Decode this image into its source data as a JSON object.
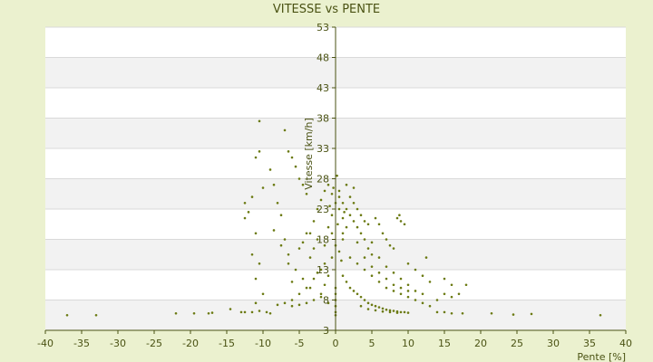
{
  "chart_data": {
    "type": "scatter",
    "title": "VITESSE vs PENTE",
    "xlabel": "Pente [%]",
    "ylabel": "Vitesse [km/h]",
    "xlim": [
      -40,
      40
    ],
    "ylim": [
      3,
      53
    ],
    "x_ticks": [
      -40,
      -35,
      -30,
      -25,
      -20,
      -15,
      -10,
      -5,
      0,
      5,
      10,
      15,
      20,
      25,
      30,
      35,
      40
    ],
    "y_ticks": [
      3,
      8,
      13,
      18,
      23,
      28,
      33,
      38,
      43,
      48,
      53
    ],
    "grid": "horizontal bands",
    "legend": "none",
    "colors": {
      "background": "#ebf1cf",
      "plot_band_light": "#ffffff",
      "plot_band_dark": "#f2f2f2",
      "gridline": "#d9d9d9",
      "marker": "#6b7a12",
      "axis": "#4a5213"
    },
    "series": [
      {
        "points": [
          [
            -37,
            5.5
          ],
          [
            -33,
            5.5
          ],
          [
            -22,
            5.8
          ],
          [
            -19.5,
            5.8
          ],
          [
            -17.5,
            5.8
          ],
          [
            -17,
            5.9
          ],
          [
            -14.5,
            6.5
          ],
          [
            -13,
            6
          ],
          [
            -12.5,
            6
          ],
          [
            -11.5,
            6
          ],
          [
            -11,
            7.5
          ],
          [
            -10.5,
            37.5
          ],
          [
            -10.5,
            32.5
          ],
          [
            -11,
            31.5
          ],
          [
            -10,
            26.5
          ],
          [
            -11.5,
            25
          ],
          [
            -12.5,
            24
          ],
          [
            -12,
            22.5
          ],
          [
            -12.5,
            21.5
          ],
          [
            -11,
            19
          ],
          [
            -11.5,
            15.5
          ],
          [
            -10.5,
            14
          ],
          [
            -11,
            11.5
          ],
          [
            -10,
            9
          ],
          [
            -10.5,
            6.2
          ],
          [
            -9.5,
            6
          ],
          [
            -9,
            5.8
          ],
          [
            -9,
            29.5
          ],
          [
            -8.5,
            27
          ],
          [
            -8,
            24
          ],
          [
            -7.5,
            22
          ],
          [
            -7,
            18
          ],
          [
            -6.5,
            14
          ],
          [
            -6,
            11
          ],
          [
            -7,
            36
          ],
          [
            -6.5,
            32.5
          ],
          [
            -6,
            31.5
          ],
          [
            -5.5,
            30
          ],
          [
            -5,
            28
          ],
          [
            -4.5,
            27
          ],
          [
            -4,
            25.5
          ],
          [
            -8,
            7.2
          ],
          [
            -7,
            7.5
          ],
          [
            -6,
            8
          ],
          [
            -5,
            9
          ],
          [
            -4,
            10
          ],
          [
            -3,
            11.5
          ],
          [
            -2,
            13
          ],
          [
            -1.5,
            14
          ],
          [
            -3.5,
            19
          ],
          [
            -3,
            21
          ],
          [
            -2.5,
            23
          ],
          [
            -2,
            24.5
          ],
          [
            -1.5,
            26
          ],
          [
            -1,
            27
          ],
          [
            -5,
            16.5
          ],
          [
            -4.5,
            17.5
          ],
          [
            -4,
            19
          ],
          [
            -3.5,
            15
          ],
          [
            -3,
            16.5
          ],
          [
            -2.5,
            18
          ],
          [
            -1,
            20
          ],
          [
            -0.5,
            22
          ],
          [
            0,
            24
          ],
          [
            0.5,
            23
          ],
          [
            1,
            21.5
          ],
          [
            1.5,
            20
          ],
          [
            -2,
            9
          ],
          [
            -1.5,
            10.5
          ],
          [
            -1,
            12
          ],
          [
            -0.5,
            15
          ],
          [
            0,
            17
          ],
          [
            0.5,
            16
          ],
          [
            1,
            18
          ],
          [
            0,
            5.5
          ],
          [
            0,
            6
          ],
          [
            0,
            7
          ],
          [
            0,
            8
          ],
          [
            0,
            9
          ],
          [
            0,
            10
          ],
          [
            0.2,
            28.5
          ],
          [
            -0.3,
            26.5
          ],
          [
            0.5,
            25
          ],
          [
            1,
            24
          ],
          [
            1.5,
            23
          ],
          [
            2,
            22
          ],
          [
            2.5,
            21
          ],
          [
            3,
            20
          ],
          [
            3.5,
            19
          ],
          [
            4,
            18
          ],
          [
            4.5,
            16.5
          ],
          [
            5,
            15.5
          ],
          [
            2,
            25
          ],
          [
            2.5,
            24
          ],
          [
            3,
            23
          ],
          [
            3.5,
            22
          ],
          [
            4,
            21
          ],
          [
            4.5,
            20.5
          ],
          [
            5.5,
            21.5
          ],
          [
            6,
            20.5
          ],
          [
            6.5,
            19
          ],
          [
            7,
            18
          ],
          [
            7.5,
            17
          ],
          [
            8,
            16.5
          ],
          [
            1,
            12
          ],
          [
            1.5,
            11
          ],
          [
            2,
            10
          ],
          [
            2.5,
            9.5
          ],
          [
            3,
            9
          ],
          [
            3.5,
            8.5
          ],
          [
            4,
            8
          ],
          [
            4.5,
            7.5
          ],
          [
            5,
            7.2
          ],
          [
            5.5,
            7
          ],
          [
            6,
            6.8
          ],
          [
            6.5,
            6.6
          ],
          [
            7,
            6.4
          ],
          [
            7.5,
            6.3
          ],
          [
            8,
            6.2
          ],
          [
            8.5,
            6.1
          ],
          [
            9,
            6
          ],
          [
            9.5,
            6
          ],
          [
            10,
            5.9
          ],
          [
            2,
            15
          ],
          [
            3,
            14
          ],
          [
            4,
            13
          ],
          [
            5,
            12
          ],
          [
            6,
            11
          ],
          [
            7,
            10
          ],
          [
            8,
            9.5
          ],
          [
            9,
            9
          ],
          [
            10,
            8.5
          ],
          [
            5,
            17.5
          ],
          [
            6,
            15
          ],
          [
            7,
            13.5
          ],
          [
            8,
            12.5
          ],
          [
            9,
            11.5
          ],
          [
            10,
            10.5
          ],
          [
            11,
            9.5
          ],
          [
            12,
            9
          ],
          [
            8.5,
            21.5
          ],
          [
            9,
            21
          ],
          [
            9.5,
            20.5
          ],
          [
            8.8,
            22
          ],
          [
            10,
            14
          ],
          [
            11,
            13
          ],
          [
            12,
            12
          ],
          [
            12.5,
            15
          ],
          [
            13,
            11
          ],
          [
            11,
            8
          ],
          [
            12,
            7.5
          ],
          [
            13,
            7
          ],
          [
            14,
            8
          ],
          [
            15,
            9
          ],
          [
            16,
            8.5
          ],
          [
            17,
            9
          ],
          [
            14,
            6
          ],
          [
            15,
            6
          ],
          [
            16,
            5.8
          ],
          [
            17.5,
            5.8
          ],
          [
            21.5,
            5.8
          ],
          [
            24.5,
            5.6
          ],
          [
            27,
            5.7
          ],
          [
            36.5,
            5.5
          ],
          [
            15,
            11.5
          ],
          [
            16,
            10.5
          ],
          [
            18,
            10.5
          ],
          [
            -8.5,
            19.5
          ],
          [
            -7.5,
            17
          ],
          [
            -6.5,
            15.5
          ],
          [
            -5.5,
            13
          ],
          [
            -4.5,
            11.5
          ],
          [
            -3.5,
            10
          ],
          [
            1.5,
            27
          ],
          [
            2.5,
            26.5
          ],
          [
            0.5,
            26
          ],
          [
            -0.5,
            25.5
          ],
          [
            1,
            19
          ],
          [
            0.8,
            14.5
          ],
          [
            3,
            17.5
          ],
          [
            4,
            15
          ],
          [
            5,
            13.5
          ],
          [
            6,
            12.5
          ],
          [
            7,
            11.5
          ],
          [
            8,
            10.5
          ],
          [
            9,
            10
          ],
          [
            10,
            9.5
          ],
          [
            3.5,
            7
          ],
          [
            4.5,
            6.5
          ],
          [
            5.5,
            6.3
          ],
          [
            6.5,
            6.1
          ],
          [
            7.5,
            6
          ],
          [
            8.5,
            5.9
          ],
          [
            -1,
            7.5
          ],
          [
            -2,
            8.5
          ],
          [
            -3,
            8
          ],
          [
            -4,
            7.5
          ],
          [
            -5,
            7.2
          ],
          [
            -6,
            7
          ],
          [
            -2.5,
            12.5
          ],
          [
            -1.5,
            17
          ],
          [
            -0.5,
            19
          ],
          [
            0.3,
            20.5
          ],
          [
            1.2,
            22.5
          ],
          [
            -0.8,
            23.5
          ]
        ]
      }
    ]
  }
}
